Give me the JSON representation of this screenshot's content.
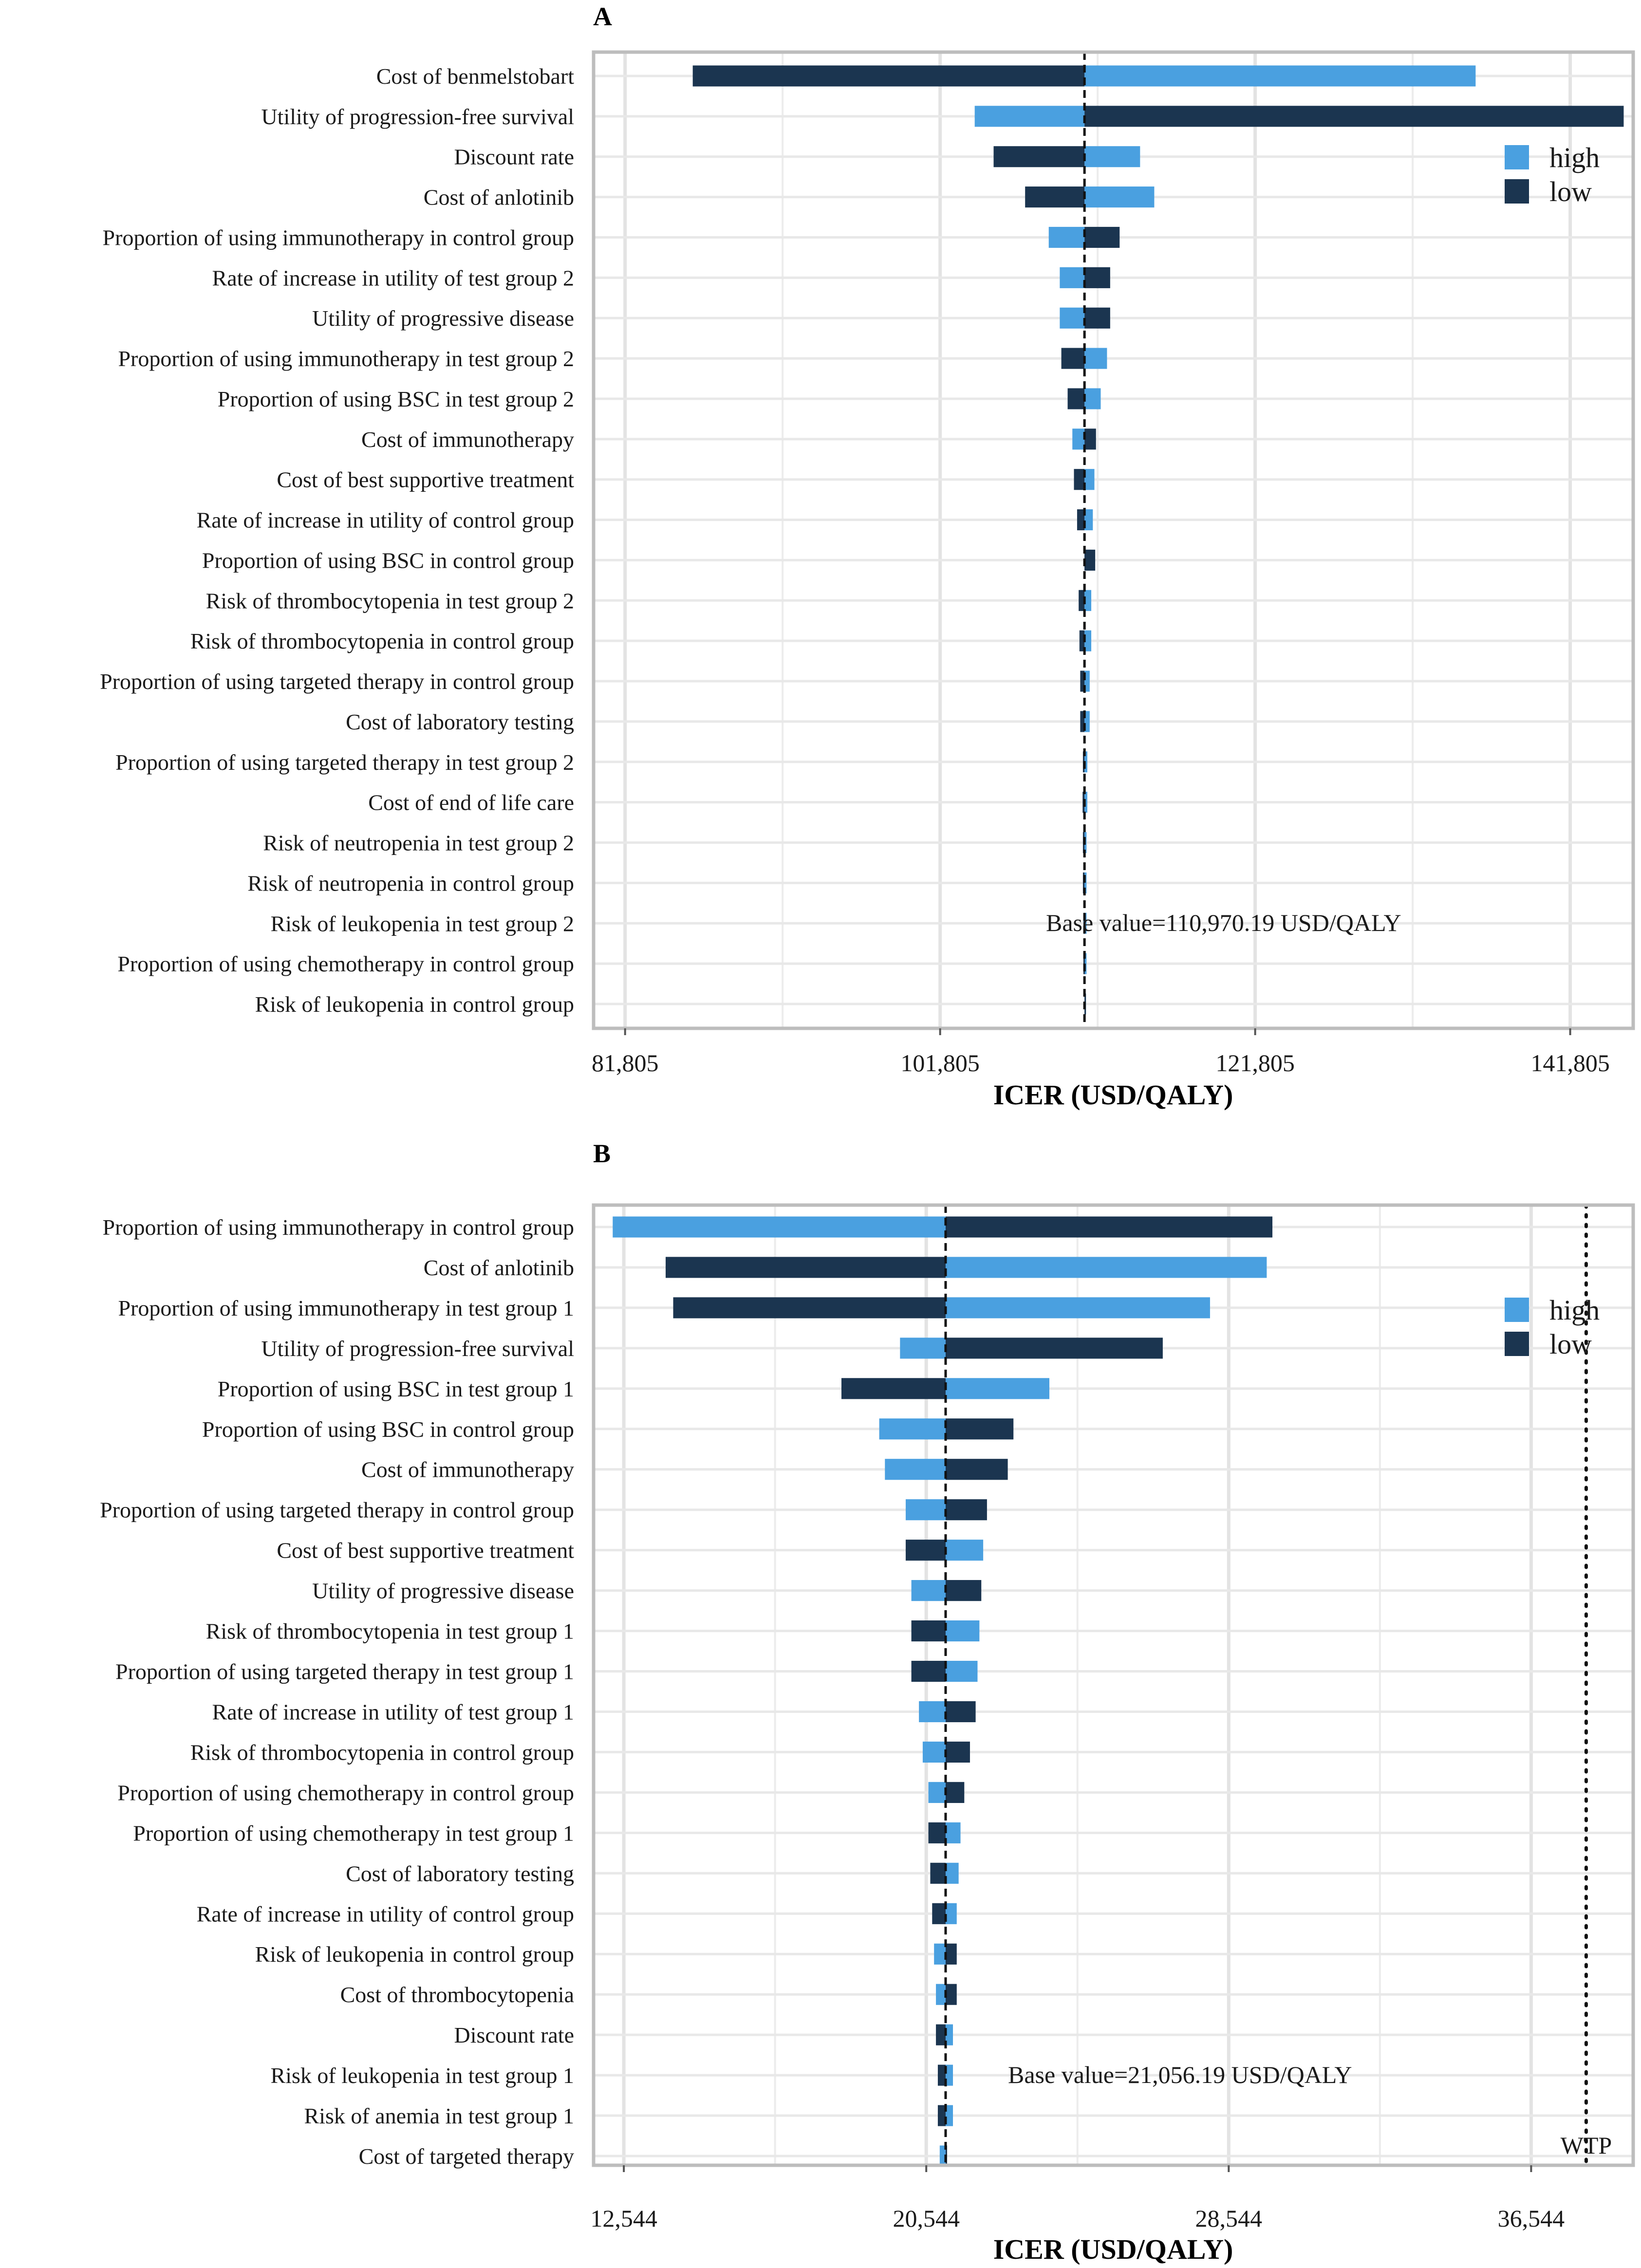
{
  "chart_data": [
    {
      "panel": "A",
      "type": "bar",
      "subtype": "tornado",
      "xlabel": "ICER (USD/QALY)",
      "xlim": [
        79805,
        145805
      ],
      "xticks": [
        81805,
        101805,
        121805,
        141805
      ],
      "xtick_labels": [
        "81,805",
        "101,805",
        "121,805",
        "141,805"
      ],
      "base_value": 110970.19,
      "base_label": "Base value=110,970.19 USD/QALY",
      "legend": [
        {
          "key": "high",
          "label": "high",
          "color": "#4aa0e0"
        },
        {
          "key": "low",
          "label": "low",
          "color": "#1b3550"
        }
      ],
      "legend_position": "right",
      "categories": [
        "Cost of benmelstobart ",
        "Utility of progression-free survival",
        "Discount rate",
        "Cost of anlotinib ",
        "Proportion of using immunotherapy in control group",
        "Rate of increase in utility of test group 2",
        "Utility of progressive disease",
        "Proportion of using immunotherapy in test group 2",
        "Proportion of using BSC in test group 2",
        "Cost of immunotherapy",
        "Cost of best supportive treatment",
        "Rate of increase in utility of control group",
        "Proportion of using BSC in control group",
        "Risk of thrombocytopenia in test group 2",
        "Risk of thrombocytopenia in control group",
        "Proportion of using targeted therapy in control group",
        "Cost of laboratory testing",
        "Proportion of using targeted therapy in test group 2",
        "Cost of end of life care",
        "Risk of neutropenia in test group 2",
        "Risk of neutropenia in control group",
        "Risk of leukopenia in test group 2",
        "Proportion of using chemotherapy in control group",
        "Risk of leukopenia in control group"
      ],
      "series": [
        {
          "name": "high",
          "values": [
            135800,
            104000,
            114500,
            115400,
            108700,
            109400,
            109400,
            112400,
            112000,
            110200,
            111600,
            111500,
            111400,
            111400,
            111400,
            111300,
            111300,
            111150,
            111150,
            111100,
            111100,
            111100,
            111100,
            110970
          ]
        },
        {
          "name": "low",
          "values": [
            86100,
            145200,
            105200,
            107200,
            113200,
            112600,
            112600,
            109500,
            109900,
            111700,
            110300,
            110500,
            111650,
            110600,
            110650,
            110700,
            110700,
            110870,
            110850,
            110870,
            110870,
            110900,
            110900,
            110970
          ]
        }
      ],
      "reference_lines": [],
      "grid": true
    },
    {
      "panel": "B",
      "type": "bar",
      "subtype": "tornado",
      "xlabel": "ICER (USD/QALY)",
      "xlim": [
        11744,
        39244
      ],
      "xticks": [
        12544,
        20544,
        28544,
        36544
      ],
      "xtick_labels": [
        "12,544",
        "20,544",
        "28,544",
        "36,544"
      ],
      "base_value": 21056.19,
      "base_label": "Base value=21,056.19 USD/QALY",
      "legend": [
        {
          "key": "high",
          "label": "high",
          "color": "#4aa0e0"
        },
        {
          "key": "low",
          "label": "low",
          "color": "#1b3550"
        }
      ],
      "legend_position": "right",
      "categories": [
        "Proportion of using immunotherapy in control group",
        "Cost of anlotinib ",
        "Proportion of using immunotherapy in test group 1",
        "Utility of progression-free survival",
        "Proportion of using BSC in test group 1",
        "Proportion of using BSC in control group",
        "Cost of immunotherapy",
        "Proportion of using targeted therapy in control group",
        "Cost of best supportive treatment",
        "Utility of progressive disease",
        "Risk of thrombocytopenia in test group 1",
        "Proportion of using targeted therapy in test group 1",
        "Rate of increase in utility of test group 1",
        "Risk of thrombocytopenia in control group",
        "Proportion of using chemotherapy in control group",
        "Proportion of using chemotherapy in test group 1",
        "Cost of laboratory testing",
        "Rate of increase in utility of control group",
        "Risk of leukopenia in control group",
        "Cost of thrombocytopenia",
        "Discount rate",
        "Risk of leukopenia in test group 1",
        "Risk of anemia in test group 1",
        "Cost of targeted therapy"
      ],
      "series": [
        {
          "name": "high",
          "values": [
            12250,
            29550,
            28050,
            19850,
            23800,
            19300,
            19450,
            20000,
            22050,
            20150,
            21950,
            21900,
            20350,
            20450,
            20600,
            21450,
            21400,
            21350,
            20750,
            20800,
            21250,
            21250,
            21250,
            20900
          ]
        },
        {
          "name": "low",
          "values": [
            29700,
            13650,
            13850,
            26800,
            18300,
            22850,
            22700,
            22150,
            20000,
            22000,
            20150,
            20150,
            21850,
            21700,
            21550,
            20600,
            20650,
            20700,
            21350,
            21350,
            20800,
            20850,
            20850,
            21056.19
          ]
        }
      ],
      "reference_lines": [
        {
          "name": "WTP",
          "value": 38000,
          "label": "WTP",
          "style": "dotted"
        }
      ],
      "grid": true
    }
  ]
}
